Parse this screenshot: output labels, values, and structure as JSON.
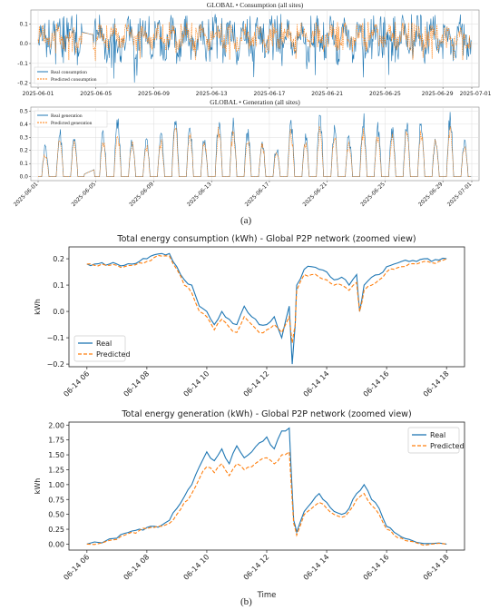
{
  "panel_labels": {
    "a": "(a)",
    "b": "(b)"
  },
  "colors": {
    "real": "#1f77b4",
    "predicted": "#ff7f0e",
    "axis": "#333333",
    "grid": "#dddddd"
  },
  "chart_data": [
    {
      "id": "global-consumption",
      "type": "line",
      "title": "GLOBAL • Consumption (all sites)",
      "xlabel": "",
      "ylabel": "",
      "x_ticks": [
        "2025-06-01",
        "2025-06-05",
        "2025-06-09",
        "2025-06-13",
        "2025-06-17",
        "2025-06-21",
        "2025-06-25",
        "2025-06-29",
        "2025-07-01"
      ],
      "x_range": [
        "2025-06-01",
        "2025-07-01"
      ],
      "ylim": [
        -0.22,
        0.17
      ],
      "y_ticks": [
        -0.2,
        -0.1,
        0.0,
        0.1
      ],
      "y_tick_labels": [
        "-0.2",
        "-0.1",
        "0.0",
        "0.1"
      ],
      "grid": true,
      "legend": "lower-left",
      "series": [
        {
          "name": "Real consumption",
          "style": "solid",
          "approx_range": [
            -0.21,
            0.16
          ]
        },
        {
          "name": "Predicted consumption",
          "style": "dashed",
          "approx_range": [
            -0.1,
            0.13
          ]
        }
      ]
    },
    {
      "id": "global-generation",
      "type": "line",
      "title": "GLOBAL • Generation (all sites)",
      "xlabel": "",
      "ylabel": "",
      "x_ticks": [
        "2025-06-01",
        "2025-06-05",
        "2025-06-09",
        "2025-06-13",
        "2025-06-17",
        "2025-06-21",
        "2025-06-25",
        "2025-06-29",
        "2025-07-01"
      ],
      "x_range": [
        "2025-06-01",
        "2025-07-01"
      ],
      "ylim": [
        -0.03,
        0.53
      ],
      "y_ticks": [
        0.0,
        0.1,
        0.2,
        0.3,
        0.4,
        0.5
      ],
      "y_tick_labels": [
        "0.0",
        "0.1",
        "0.2",
        "0.3",
        "0.4",
        "0.5"
      ],
      "grid": true,
      "legend": "top-left",
      "series": [
        {
          "name": "Real generation",
          "style": "solid",
          "daily_peaks": [
            0.25,
            0.38,
            0.35,
            0.48,
            0.37,
            0.48,
            0.32,
            0.3,
            0.35,
            0.5,
            0.42,
            0.33,
            0.5,
            0.45,
            0.38,
            0.3,
            0.25,
            0.48,
            0.35,
            0.5,
            0.4,
            0.35,
            0.5,
            0.43,
            0.4,
            0.45,
            0.47,
            0.33,
            0.5,
            0.3
          ]
        },
        {
          "name": "Predicted generation",
          "style": "dashed",
          "daily_peaks": [
            0.2,
            0.33,
            0.3,
            0.38,
            0.3,
            0.38,
            0.28,
            0.27,
            0.3,
            0.4,
            0.35,
            0.3,
            0.4,
            0.38,
            0.33,
            0.28,
            0.22,
            0.38,
            0.3,
            0.4,
            0.35,
            0.3,
            0.4,
            0.37,
            0.35,
            0.38,
            0.38,
            0.3,
            0.4,
            0.27
          ]
        }
      ]
    },
    {
      "id": "consumption-zoomed",
      "type": "line",
      "title": "Total energy consumption (kWh) - Global P2P network (zoomed view)",
      "xlabel": "",
      "ylabel": "kWh",
      "x_ticks": [
        "06-14 06",
        "06-14 08",
        "06-14 10",
        "06-14 12",
        "06-14 14",
        "06-14 16",
        "06-14 18"
      ],
      "x_hours": [
        6,
        8,
        10,
        12,
        14,
        16,
        18
      ],
      "x_range_hours": [
        5.4,
        18.6
      ],
      "ylim": [
        -0.21,
        0.245
      ],
      "y_ticks": [
        -0.2,
        -0.1,
        0.0,
        0.1,
        0.2
      ],
      "y_tick_labels": [
        "−0.2",
        "−0.1",
        "0.0",
        "0.1",
        "0.2"
      ],
      "grid": false,
      "legend": "lower-left",
      "series": [
        {
          "name": "Real",
          "style": "solid",
          "x": [
            6,
            6.25,
            6.5,
            6.75,
            7,
            7.25,
            7.5,
            7.75,
            8,
            8.25,
            8.5,
            8.75,
            9,
            9.25,
            9.5,
            9.75,
            10,
            10.25,
            10.5,
            10.75,
            11,
            11.25,
            11.5,
            11.75,
            12,
            12.25,
            12.5,
            12.75,
            12.85,
            12.95,
            13,
            13.25,
            13.5,
            13.75,
            14,
            14.25,
            14.5,
            14.75,
            15,
            15.1,
            15.25,
            15.5,
            15.75,
            16,
            16.25,
            16.5,
            16.75,
            17,
            17.25,
            17.5,
            17.75,
            18
          ],
          "y": [
            0.18,
            0.18,
            0.185,
            0.18,
            0.18,
            0.175,
            0.18,
            0.19,
            0.2,
            0.215,
            0.22,
            0.22,
            0.17,
            0.12,
            0.1,
            0.02,
            0.0,
            -0.05,
            0.0,
            -0.03,
            -0.05,
            0.02,
            -0.02,
            -0.05,
            -0.05,
            -0.02,
            -0.1,
            0.02,
            -0.2,
            -0.05,
            0.1,
            0.16,
            0.17,
            0.16,
            0.15,
            0.12,
            0.13,
            0.1,
            0.14,
            0.0,
            0.1,
            0.13,
            0.14,
            0.17,
            0.18,
            0.19,
            0.19,
            0.19,
            0.2,
            0.19,
            0.195,
            0.2
          ]
        },
        {
          "name": "Predicted",
          "style": "dashed",
          "x": [
            6,
            6.25,
            6.5,
            6.75,
            7,
            7.25,
            7.5,
            7.75,
            8,
            8.25,
            8.5,
            8.75,
            9,
            9.25,
            9.5,
            9.75,
            10,
            10.25,
            10.5,
            10.75,
            11,
            11.25,
            11.5,
            11.75,
            12,
            12.25,
            12.5,
            12.75,
            12.85,
            12.95,
            13,
            13.25,
            13.5,
            13.75,
            14,
            14.25,
            14.5,
            14.75,
            15,
            15.1,
            15.25,
            15.5,
            15.75,
            16,
            16.25,
            16.5,
            16.75,
            17,
            17.25,
            17.5,
            17.75,
            18
          ],
          "y": [
            0.18,
            0.175,
            0.18,
            0.175,
            0.175,
            0.17,
            0.175,
            0.185,
            0.19,
            0.205,
            0.21,
            0.21,
            0.16,
            0.1,
            0.07,
            0.0,
            -0.02,
            -0.07,
            -0.03,
            -0.06,
            -0.08,
            -0.02,
            -0.05,
            -0.08,
            -0.07,
            -0.05,
            -0.08,
            -0.02,
            -0.12,
            -0.05,
            0.08,
            0.14,
            0.14,
            0.13,
            0.12,
            0.1,
            0.1,
            0.08,
            0.11,
            0.0,
            0.08,
            0.1,
            0.12,
            0.15,
            0.16,
            0.17,
            0.18,
            0.18,
            0.19,
            0.185,
            0.19,
            0.2
          ]
        }
      ]
    },
    {
      "id": "generation-zoomed",
      "type": "line",
      "title": "Total energy generation (kWh) - Global P2P network (zoomed view)",
      "xlabel": "Time",
      "ylabel": "kWh",
      "x_ticks": [
        "06-14 06",
        "06-14 08",
        "06-14 10",
        "06-14 12",
        "06-14 14",
        "06-14 16",
        "06-14 18"
      ],
      "x_hours": [
        6,
        8,
        10,
        12,
        14,
        16,
        18
      ],
      "x_range_hours": [
        5.4,
        18.6
      ],
      "ylim": [
        -0.1,
        2.05
      ],
      "y_ticks": [
        0.0,
        0.25,
        0.5,
        0.75,
        1.0,
        1.25,
        1.5,
        1.75,
        2.0
      ],
      "y_tick_labels": [
        "0.00",
        "0.25",
        "0.50",
        "0.75",
        "1.00",
        "1.25",
        "1.50",
        "1.75",
        "2.00"
      ],
      "grid": false,
      "legend": "top-right",
      "series": [
        {
          "name": "Real",
          "style": "solid",
          "x": [
            6,
            6.5,
            7,
            7.25,
            7.5,
            7.75,
            8,
            8.25,
            8.5,
            8.75,
            9,
            9.25,
            9.5,
            9.75,
            10,
            10.25,
            10.5,
            10.75,
            11,
            11.25,
            11.5,
            11.75,
            12,
            12.25,
            12.5,
            12.75,
            12.9,
            13,
            13.25,
            13.5,
            13.75,
            14,
            14.25,
            14.5,
            14.75,
            15,
            15.25,
            15.5,
            15.75,
            16,
            16.25,
            16.5,
            16.75,
            17,
            17.5,
            18
          ],
          "y": [
            0.0,
            0.02,
            0.1,
            0.18,
            0.22,
            0.25,
            0.28,
            0.3,
            0.32,
            0.4,
            0.6,
            0.8,
            1.0,
            1.3,
            1.55,
            1.4,
            1.6,
            1.35,
            1.65,
            1.45,
            1.55,
            1.7,
            1.8,
            1.6,
            1.9,
            1.95,
            0.4,
            0.2,
            0.55,
            0.7,
            0.85,
            0.7,
            0.55,
            0.5,
            0.6,
            0.85,
            1.0,
            0.75,
            0.6,
            0.3,
            0.2,
            0.12,
            0.08,
            0.03,
            0.01,
            0.0
          ]
        },
        {
          "name": "Predicted",
          "style": "dashed",
          "x": [
            6,
            6.5,
            7,
            7.25,
            7.5,
            7.75,
            8,
            8.25,
            8.5,
            8.75,
            9,
            9.25,
            9.5,
            9.75,
            10,
            10.25,
            10.5,
            10.75,
            11,
            11.25,
            11.5,
            11.75,
            12,
            12.25,
            12.5,
            12.75,
            12.9,
            13,
            13.25,
            13.5,
            13.75,
            14,
            14.25,
            14.5,
            14.75,
            15,
            15.25,
            15.5,
            15.75,
            16,
            16.25,
            16.5,
            16.75,
            17,
            17.5,
            18
          ],
          "y": [
            0.0,
            0.02,
            0.08,
            0.15,
            0.2,
            0.23,
            0.26,
            0.28,
            0.3,
            0.35,
            0.5,
            0.7,
            0.85,
            1.1,
            1.3,
            1.2,
            1.35,
            1.15,
            1.35,
            1.25,
            1.3,
            1.4,
            1.45,
            1.35,
            1.5,
            1.55,
            0.35,
            0.15,
            0.5,
            0.6,
            0.7,
            0.6,
            0.5,
            0.45,
            0.55,
            0.75,
            0.85,
            0.65,
            0.5,
            0.25,
            0.15,
            0.1,
            0.05,
            0.02,
            0.0,
            0.0
          ]
        }
      ]
    }
  ]
}
